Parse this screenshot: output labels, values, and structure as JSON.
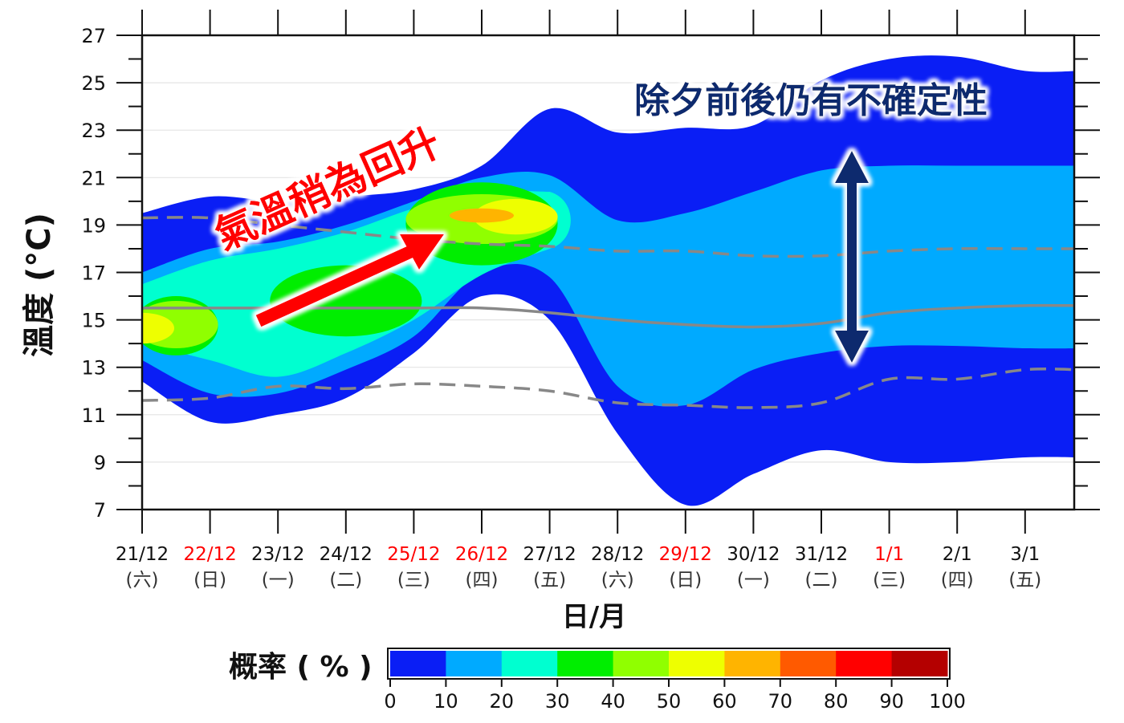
{
  "chart_data": {
    "type": "area",
    "title": "",
    "xlabel": "日/月",
    "ylabel": "溫度 (°C)",
    "ylim": [
      7,
      27
    ],
    "yticks": [
      7,
      9,
      11,
      13,
      15,
      17,
      19,
      21,
      23,
      25,
      27
    ],
    "grid": true,
    "dates": [
      "21/12",
      "22/12",
      "23/12",
      "24/12",
      "25/12",
      "26/12",
      "27/12",
      "28/12",
      "29/12",
      "30/12",
      "31/12",
      "1/1",
      "2/1",
      "3/1"
    ],
    "weekdays": [
      "(六)",
      "(日)",
      "(一)",
      "(二)",
      "(三)",
      "(四)",
      "(五)",
      "(六)",
      "(日)",
      "(一)",
      "(二)",
      "(三)",
      "(四)",
      "(五)"
    ],
    "highlight_dates": [
      "22/12",
      "25/12",
      "26/12",
      "29/12",
      "1/1"
    ],
    "highlight_color": "#ff0000",
    "series": [
      {
        "style": "solid",
        "color": "#888888",
        "values": [
          15.5,
          15.5,
          15.5,
          15.5,
          15.5,
          15.5,
          15.3,
          15.0,
          14.8,
          14.7,
          14.85,
          15.3,
          15.5,
          15.6
        ]
      },
      {
        "style": "dashed",
        "color": "#888888",
        "values": [
          19.3,
          19.3,
          19.0,
          18.7,
          18.4,
          18.2,
          18.1,
          17.9,
          17.9,
          17.7,
          17.7,
          17.9,
          18.0,
          18.0
        ]
      },
      {
        "style": "dashed",
        "color": "#888888",
        "values": [
          11.6,
          11.7,
          12.2,
          12.1,
          12.3,
          12.2,
          12.0,
          11.5,
          11.4,
          11.3,
          11.5,
          12.5,
          12.5,
          12.9
        ]
      }
    ],
    "probability_bands": [
      {
        "level": "0-10",
        "color": "#0a1ef5",
        "upper": [
          19.5,
          20.2,
          20.0,
          20.2,
          20.5,
          21.5,
          23.9,
          22.9,
          23.1,
          23.2,
          25.1,
          26.0,
          26.1,
          25.5
        ],
        "lower": [
          12.4,
          10.7,
          11.0,
          11.7,
          13.6,
          16.0,
          15.0,
          10.2,
          7.2,
          8.5,
          9.5,
          9.0,
          9.0,
          9.2
        ]
      },
      {
        "level": "10-20",
        "color": "#00aaff",
        "upper": [
          17.0,
          18.0,
          18.3,
          19.0,
          20.0,
          21.0,
          21.1,
          19.2,
          19.5,
          20.4,
          21.3,
          21.5,
          21.5,
          21.5
        ],
        "lower": [
          13.3,
          11.9,
          11.9,
          12.9,
          14.3,
          17.0,
          16.8,
          12.2,
          11.4,
          12.9,
          13.6,
          13.9,
          13.9,
          13.8
        ]
      },
      {
        "level": "20-30",
        "color": "#00ffd0",
        "upper": [
          16.5,
          17.5,
          18.0,
          18.7,
          19.7,
          20.4,
          20.4
        ],
        "lower": [
          14.0,
          13.3,
          12.6,
          13.6,
          15.0,
          16.9,
          18.0
        ]
      }
    ],
    "probability_cores": [
      {
        "level": "30-40",
        "color": "#00ee00",
        "x": [
          "21/12",
          "22/12"
        ],
        "y": [
          13.5,
          16.0
        ]
      },
      {
        "level": "30-40",
        "color": "#00ee00",
        "x": [
          "23/12",
          "25/12"
        ],
        "y": [
          14.3,
          17.3
        ]
      },
      {
        "level": "30-40",
        "color": "#00ee00",
        "x": [
          "25/12",
          "27/12"
        ],
        "y": [
          17.3,
          20.8
        ]
      },
      {
        "level": "40-50",
        "color": "#90ff00",
        "x": [
          "21/12",
          "22/12"
        ],
        "y": [
          13.8,
          15.8
        ]
      },
      {
        "level": "40-50",
        "color": "#90ff00",
        "x": [
          "25/12",
          "27/12"
        ],
        "y": [
          18.2,
          20.3
        ]
      },
      {
        "level": "50-60",
        "color": "#eeff00",
        "x": [
          "21/12",
          "21/12"
        ],
        "y": [
          14.0,
          15.3
        ]
      },
      {
        "level": "50-60",
        "color": "#eeff00",
        "x": [
          "26/12",
          "27/12"
        ],
        "y": [
          18.6,
          20.1
        ]
      },
      {
        "level": "60-70",
        "color": "#ffb400",
        "x": [
          "26/12",
          "26/12"
        ],
        "y": [
          19.1,
          19.7
        ]
      }
    ],
    "colorbar": {
      "label": "概率 ( % )",
      "ticks": [
        "0",
        "10",
        "20",
        "30",
        "40",
        "50",
        "60",
        "70",
        "80",
        "90",
        "100"
      ],
      "colors": [
        "#0a1ef5",
        "#00aaff",
        "#00ffd0",
        "#00ee00",
        "#90ff00",
        "#eeff00",
        "#ffb400",
        "#ff5a00",
        "#ff0000",
        "#b40000"
      ]
    },
    "annotations": [
      {
        "text": "氣溫稍為回升",
        "color": "#ff0000"
      },
      {
        "text": "除夕前後仍有不確定性",
        "color": "#0a2a6e"
      }
    ]
  }
}
